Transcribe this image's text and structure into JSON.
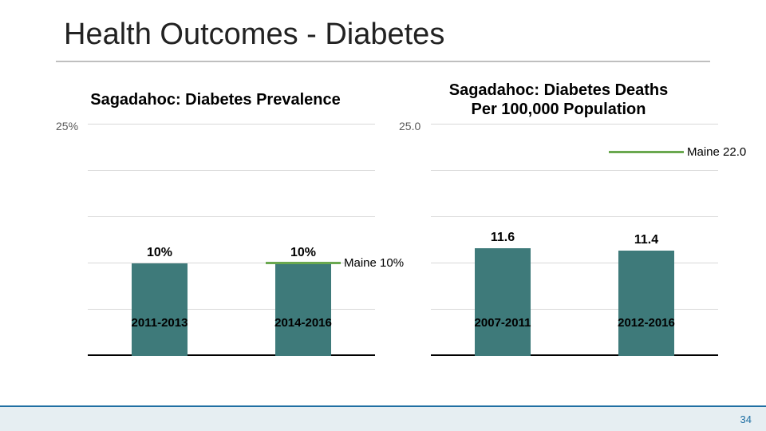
{
  "title": "Health Outcomes - Diabetes",
  "page_number": "34",
  "colors": {
    "bar_fill": "#3e7a7a",
    "ref_line": "#6aa84f",
    "grid": "#d9d9d9",
    "axis": "#000000",
    "footer_bg": "#e6eef2",
    "footer_border": "#1f6fa3",
    "page_num": "#1f6fa3"
  },
  "left_chart": {
    "title": "Sagadahoc: Diabetes Prevalence",
    "y_max_label": "25%",
    "y_max": 25,
    "grid_steps": 5,
    "ref_value": 10,
    "ref_label": "Maine 10%",
    "bars": [
      {
        "cat": "2011-2013",
        "value": 10,
        "value_label": "10%"
      },
      {
        "cat": "2014-2016",
        "value": 10,
        "value_label": "10%"
      }
    ]
  },
  "right_chart": {
    "title": "Sagadahoc: Diabetes Deaths\nPer 100,000 Population",
    "y_max_label": "25.0",
    "y_max": 25,
    "grid_steps": 5,
    "ref_value": 22,
    "ref_label": "Maine 22.0",
    "bars": [
      {
        "cat": "2007-2011",
        "value": 11.6,
        "value_label": "11.6"
      },
      {
        "cat": "2012-2016",
        "value": 11.4,
        "value_label": "11.4"
      }
    ]
  }
}
